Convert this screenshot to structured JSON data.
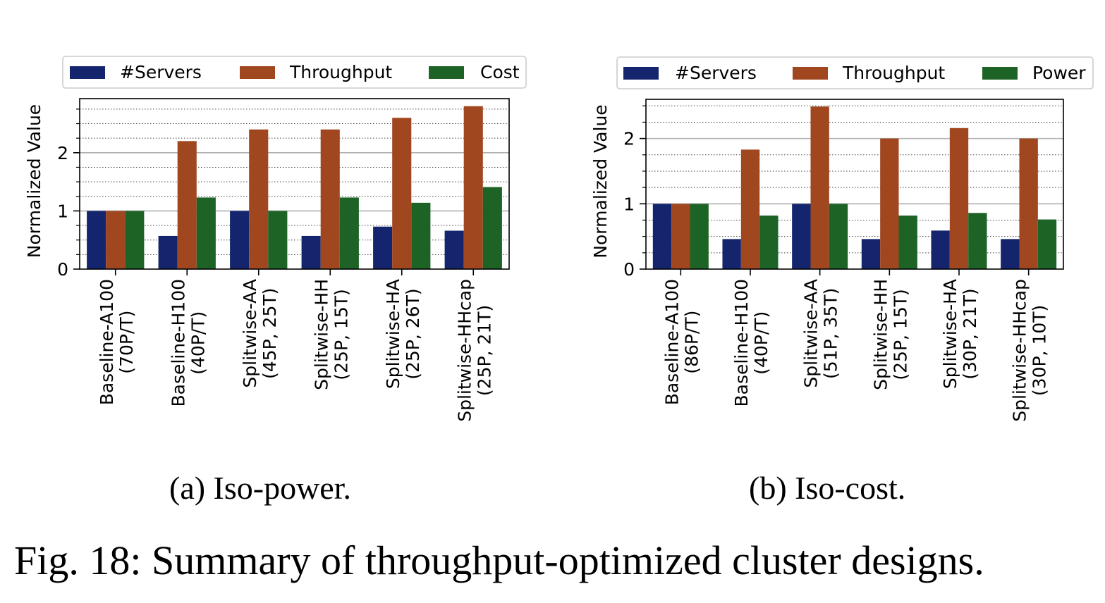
{
  "figure": {
    "caption": "Fig. 18: Summary of throughput-optimized cluster designs."
  },
  "colors": {
    "servers": "#14256e",
    "throughput": "#a0471f",
    "third": "#1e6326",
    "grid_major": "#b0b0b0",
    "grid_minor": "#444444"
  },
  "chart_data": [
    {
      "type": "bar",
      "caption": "(a) Iso-power.",
      "ylabel": "Normalized Value",
      "ylim": [
        0,
        2.93
      ],
      "yticks": [
        0,
        1,
        2
      ],
      "minor_step": 0.25,
      "grid": true,
      "legend_position": "top",
      "categories": [
        [
          "Baseline-A100",
          "(70P/T)"
        ],
        [
          "Baseline-H100",
          "(40P/T)"
        ],
        [
          "Splitwise-AA",
          "(45P, 25T)"
        ],
        [
          "Splitwise-HH",
          "(25P, 15T)"
        ],
        [
          "Splitwise-HA",
          "(25P, 26T)"
        ],
        [
          "Splitwise-HHcap",
          "(25P, 21T)"
        ]
      ],
      "series": [
        {
          "name": "#Servers",
          "color_key": "servers",
          "values": [
            1.0,
            0.57,
            1.0,
            0.57,
            0.73,
            0.66
          ]
        },
        {
          "name": "Throughput",
          "color_key": "throughput",
          "values": [
            1.0,
            2.2,
            2.4,
            2.4,
            2.6,
            2.8
          ]
        },
        {
          "name": "Cost",
          "color_key": "third",
          "values": [
            1.0,
            1.23,
            1.0,
            1.23,
            1.14,
            1.41
          ]
        }
      ]
    },
    {
      "type": "bar",
      "caption": "(b) Iso-cost.",
      "ylabel": "Normalized Value",
      "ylim": [
        0,
        2.6
      ],
      "yticks": [
        0,
        1,
        2
      ],
      "minor_step": 0.25,
      "grid": true,
      "legend_position": "top",
      "categories": [
        [
          "Baseline-A100",
          "(86P/T)"
        ],
        [
          "Baseline-H100",
          "(40P/T)"
        ],
        [
          "Splitwise-AA",
          "(51P, 35T)"
        ],
        [
          "Splitwise-HH",
          "(25P, 15T)"
        ],
        [
          "Splitwise-HA",
          "(30P, 21T)"
        ],
        [
          "Splitwise-HHcap",
          "(30P, 10T)"
        ]
      ],
      "series": [
        {
          "name": "#Servers",
          "color_key": "servers",
          "values": [
            1.0,
            0.46,
            1.0,
            0.46,
            0.59,
            0.46
          ]
        },
        {
          "name": "Throughput",
          "color_key": "throughput",
          "values": [
            1.0,
            1.83,
            2.49,
            2.0,
            2.16,
            2.0
          ]
        },
        {
          "name": "Power",
          "color_key": "third",
          "values": [
            1.0,
            0.82,
            1.0,
            0.82,
            0.86,
            0.76
          ]
        }
      ]
    }
  ]
}
